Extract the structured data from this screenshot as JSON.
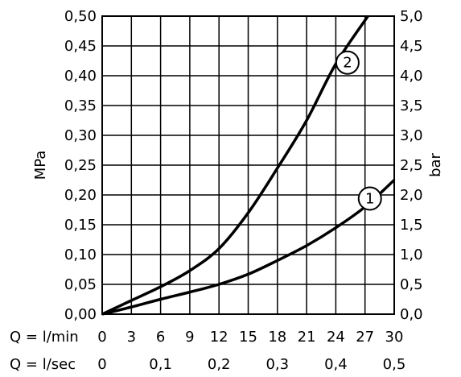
{
  "chart_data": {
    "type": "line",
    "title": "",
    "ylabel_left": "MPa",
    "ylabel_right": "bar",
    "x_rows": [
      {
        "label": "Q = l/min",
        "ticks": [
          "0",
          "3",
          "6",
          "9",
          "12",
          "15",
          "18",
          "21",
          "24",
          "27",
          "30"
        ]
      },
      {
        "label": "Q = l/sec",
        "ticks": [
          "0",
          "0,1",
          "0,2",
          "0,3",
          "0,4",
          "0,5"
        ]
      }
    ],
    "xlim": [
      0,
      30
    ],
    "ylim": [
      0,
      0.5
    ],
    "y_left_ticks": [
      "0,00",
      "0,05",
      "0,10",
      "0,15",
      "0,20",
      "0,25",
      "0,30",
      "0,35",
      "0,40",
      "0,45",
      "0,50"
    ],
    "y_right_ticks": [
      "0,0",
      "0,5",
      "1,0",
      "1,5",
      "2,0",
      "2,5",
      "3,0",
      "3,5",
      "4,0",
      "4,5",
      "5,0"
    ],
    "grid": true,
    "series": [
      {
        "name": "1",
        "x": [
          0,
          3,
          6,
          9,
          12,
          15,
          18,
          21,
          24,
          27,
          30
        ],
        "y": [
          0.0,
          0.012,
          0.025,
          0.037,
          0.05,
          0.067,
          0.09,
          0.115,
          0.145,
          0.18,
          0.225
        ]
      },
      {
        "name": "2",
        "x": [
          0,
          3,
          6,
          9,
          12,
          15,
          18,
          21,
          24,
          27.3
        ],
        "y": [
          0.0,
          0.023,
          0.046,
          0.073,
          0.11,
          0.17,
          0.245,
          0.325,
          0.42,
          0.5
        ]
      }
    ],
    "markers": [
      {
        "label": "1",
        "x": 27.5,
        "y": 0.194
      },
      {
        "label": "2",
        "x": 25.2,
        "y": 0.422
      }
    ]
  }
}
